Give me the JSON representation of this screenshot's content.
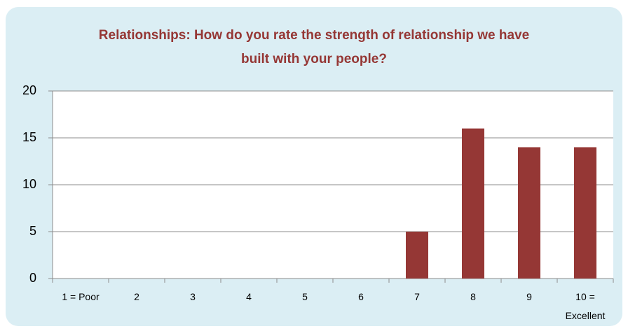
{
  "chart_data": {
    "type": "bar",
    "title": "Relationships: How do you rate the strength of relationship we have built with your people?",
    "categories": [
      "1 = Poor",
      "2",
      "3",
      "4",
      "5",
      "6",
      "7",
      "8",
      "9",
      "10 = Excellent"
    ],
    "values": [
      0,
      0,
      0,
      0,
      0,
      0,
      5,
      16,
      14,
      14
    ],
    "color": "#953735",
    "ylim": [
      0,
      20
    ],
    "yticks": [
      0,
      5,
      10,
      15,
      20
    ],
    "grid": true
  }
}
